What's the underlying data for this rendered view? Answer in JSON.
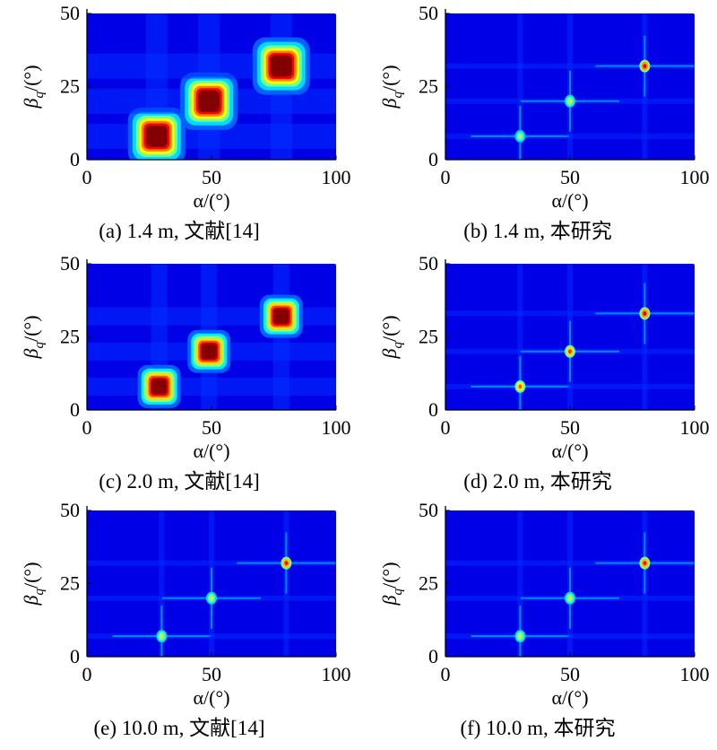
{
  "chart_data": [
    {
      "id": "a",
      "type": "heatmap",
      "caption": "(a) 1.4 m, 文献[14]",
      "xlabel": "α/(°)",
      "ylabel": "β_q/(°)",
      "xlim": [
        0,
        100
      ],
      "ylim": [
        0,
        50
      ],
      "xticks": [
        "0",
        "50",
        "100"
      ],
      "yticks": [
        "0",
        "25",
        "50"
      ],
      "colormap": "jet",
      "peaks": [
        {
          "x": 28,
          "y": 8,
          "intensity": 1.0,
          "spread": "wide"
        },
        {
          "x": 49,
          "y": 20,
          "intensity": 1.0,
          "spread": "wide"
        },
        {
          "x": 78,
          "y": 32,
          "intensity": 1.0,
          "spread": "wide"
        }
      ]
    },
    {
      "id": "b",
      "type": "heatmap",
      "caption": "(b) 1.4 m, 本研究",
      "xlabel": "α/(°)",
      "ylabel": "β_q/(°)",
      "xlim": [
        0,
        100
      ],
      "ylim": [
        0,
        50
      ],
      "xticks": [
        "0",
        "50",
        "100"
      ],
      "yticks": [
        "0",
        "25",
        "50"
      ],
      "colormap": "jet",
      "peaks": [
        {
          "x": 30,
          "y": 8,
          "intensity": 0.35,
          "spread": "sharp"
        },
        {
          "x": 50,
          "y": 20,
          "intensity": 0.4,
          "spread": "sharp"
        },
        {
          "x": 80,
          "y": 32,
          "intensity": 0.85,
          "spread": "sharp"
        }
      ]
    },
    {
      "id": "c",
      "type": "heatmap",
      "caption": "(c) 2.0 m, 文献[14]",
      "xlabel": "α/(°)",
      "ylabel": "β_q/(°)",
      "xlim": [
        0,
        100
      ],
      "ylim": [
        0,
        50
      ],
      "xticks": [
        "0",
        "50",
        "100"
      ],
      "yticks": [
        "0",
        "25",
        "50"
      ],
      "colormap": "jet",
      "peaks": [
        {
          "x": 29,
          "y": 8,
          "intensity": 1.0,
          "spread": "medium"
        },
        {
          "x": 49,
          "y": 20,
          "intensity": 1.0,
          "spread": "medium"
        },
        {
          "x": 78,
          "y": 32,
          "intensity": 1.0,
          "spread": "medium"
        }
      ]
    },
    {
      "id": "d",
      "type": "heatmap",
      "caption": "(d) 2.0 m, 本研究",
      "xlabel": "α/(°)",
      "ylabel": "β_q/(°)",
      "xlim": [
        0,
        100
      ],
      "ylim": [
        0,
        50
      ],
      "xticks": [
        "0",
        "50",
        "100"
      ],
      "yticks": [
        "0",
        "25",
        "50"
      ],
      "colormap": "jet",
      "peaks": [
        {
          "x": 30,
          "y": 8,
          "intensity": 0.7,
          "spread": "sharp"
        },
        {
          "x": 50,
          "y": 20,
          "intensity": 0.75,
          "spread": "sharp"
        },
        {
          "x": 80,
          "y": 33,
          "intensity": 0.85,
          "spread": "sharp"
        }
      ]
    },
    {
      "id": "e",
      "type": "heatmap",
      "caption": "(e) 10.0 m, 文献[14]",
      "xlabel": "α/(°)",
      "ylabel": "β_q/(°)",
      "xlim": [
        0,
        100
      ],
      "ylim": [
        0,
        50
      ],
      "xticks": [
        "0",
        "50",
        "100"
      ],
      "yticks": [
        "0",
        "25",
        "50"
      ],
      "colormap": "jet",
      "peaks": [
        {
          "x": 30,
          "y": 7,
          "intensity": 0.4,
          "spread": "sharp"
        },
        {
          "x": 50,
          "y": 20,
          "intensity": 0.4,
          "spread": "sharp"
        },
        {
          "x": 80,
          "y": 32,
          "intensity": 0.8,
          "spread": "sharp"
        }
      ]
    },
    {
      "id": "f",
      "type": "heatmap",
      "caption": "(f) 10.0 m, 本研究",
      "xlabel": "α/(°)",
      "ylabel": "β_q/(°)",
      "xlim": [
        0,
        100
      ],
      "ylim": [
        0,
        50
      ],
      "xticks": [
        "0",
        "50",
        "100"
      ],
      "yticks": [
        "0",
        "25",
        "50"
      ],
      "colormap": "jet",
      "peaks": [
        {
          "x": 30,
          "y": 7,
          "intensity": 0.4,
          "spread": "sharp"
        },
        {
          "x": 50,
          "y": 20,
          "intensity": 0.4,
          "spread": "sharp"
        },
        {
          "x": 80,
          "y": 32,
          "intensity": 0.8,
          "spread": "sharp"
        }
      ]
    }
  ]
}
